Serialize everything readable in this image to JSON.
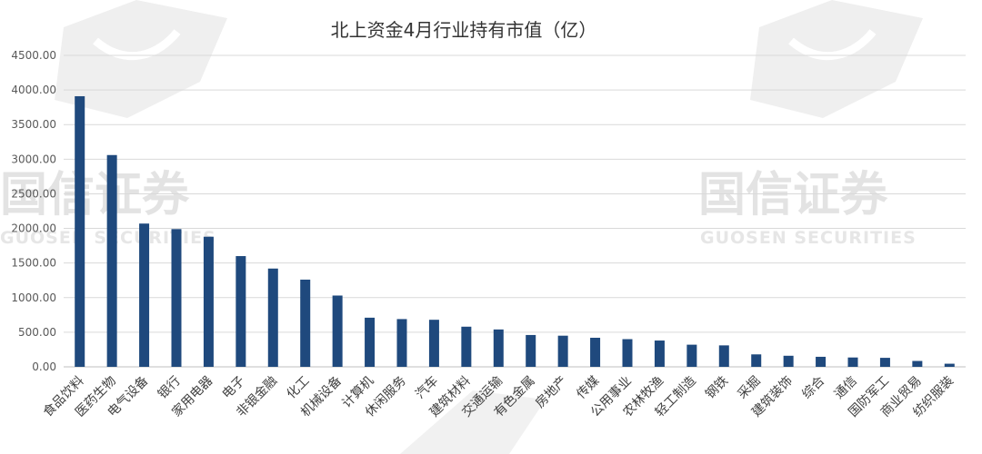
{
  "watermark": {
    "text": "国信证券",
    "subtext": "GUOSEN SECURITIES"
  },
  "chart_data": {
    "type": "bar",
    "title": "北上资金4月行业持有市值（亿）",
    "xlabel": "",
    "ylabel": "",
    "ylim": [
      0,
      4500
    ],
    "yticks": [
      "0.00",
      "500.00",
      "1000.00",
      "1500.00",
      "2000.00",
      "2500.00",
      "3000.00",
      "3500.00",
      "4000.00",
      "4500.00"
    ],
    "grid": true,
    "legend": "none",
    "bar_color": "#1f497d",
    "categories": [
      "食品饮料",
      "医药生物",
      "电气设备",
      "银行",
      "家用电器",
      "电子",
      "非银金融",
      "化工",
      "机械设备",
      "计算机",
      "休闲服务",
      "汽车",
      "建筑材料",
      "交通运输",
      "有色金属",
      "房地产",
      "传媒",
      "公用事业",
      "农林牧渔",
      "轻工制造",
      "钢铁",
      "采掘",
      "建筑装饰",
      "综合",
      "通信",
      "国防军工",
      "商业贸易",
      "纺织服装"
    ],
    "values": [
      3910,
      3060,
      2070,
      1990,
      1880,
      1600,
      1420,
      1260,
      1030,
      710,
      690,
      680,
      580,
      540,
      460,
      450,
      420,
      400,
      380,
      320,
      310,
      180,
      160,
      145,
      135,
      130,
      85,
      45
    ]
  }
}
